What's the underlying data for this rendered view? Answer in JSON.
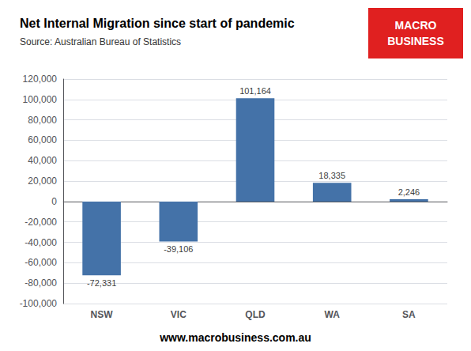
{
  "chart_data": {
    "type": "bar",
    "title": "Net Internal Migration since start of pandemic",
    "subtitle": "Source: Australian Bureau of Statistics",
    "categories": [
      "NSW",
      "VIC",
      "QLD",
      "WA",
      "SA"
    ],
    "values": [
      -72331,
      -39106,
      101164,
      18335,
      2246
    ],
    "value_labels": [
      "-72,331",
      "-39,106",
      "101,164",
      "18,335",
      "2,246"
    ],
    "data_labels": true,
    "color": "#4472a8",
    "ylim": [
      -100000,
      120000
    ],
    "yticks": [
      {
        "value": -100000,
        "label": "-100,000"
      },
      {
        "value": -80000,
        "label": "-80,000"
      },
      {
        "value": -60000,
        "label": "-60,000"
      },
      {
        "value": -40000,
        "label": "-40,000"
      },
      {
        "value": -20000,
        "label": "-20,000"
      },
      0,
      {
        "value": 20000,
        "label": "20,000"
      },
      {
        "value": 40000,
        "label": "40,000"
      },
      {
        "value": 60000,
        "label": "60,000"
      },
      {
        "value": 80000,
        "label": "80,000"
      },
      {
        "value": 100000,
        "label": "100,000"
      },
      {
        "value": 120000,
        "label": "120,000"
      }
    ],
    "grid": true,
    "annotations": [
      {
        "text": "MACRO\nBUSINESS",
        "color": "#e02020"
      },
      {
        "text": "www.macrobusiness.com.au"
      }
    ]
  }
}
